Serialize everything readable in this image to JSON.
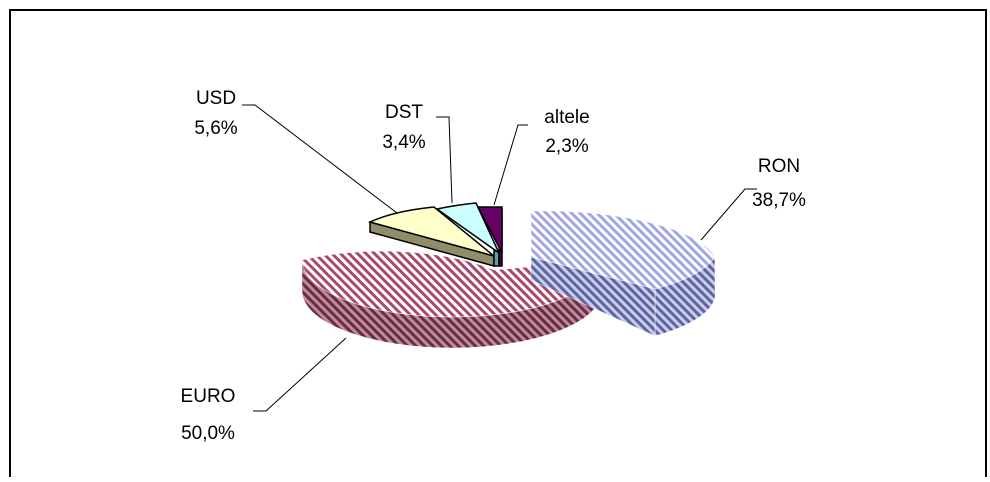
{
  "chart_data": {
    "type": "pie",
    "style": "3d-exploded",
    "slices": [
      {
        "name": "RON",
        "value": 38.7,
        "label": "38,7%",
        "color": "#9fa6e6",
        "pattern": "diagonal-hatch"
      },
      {
        "name": "EURO",
        "value": 50.0,
        "label": "50,0%",
        "color": "#a8496b",
        "pattern": "diagonal-hatch"
      },
      {
        "name": "USD",
        "value": 5.6,
        "label": "5,6%",
        "color": "#ffffcc",
        "side_color": "#8e8e6a"
      },
      {
        "name": "DST",
        "value": 3.4,
        "label": "3,4%",
        "color": "#ccffff",
        "side_color": "#6f9a9a"
      },
      {
        "name": "altele",
        "value": 2.3,
        "label": "2,3%",
        "color": "#660066",
        "side_color": "#4a004a"
      }
    ],
    "legend": "none",
    "grid": false
  }
}
